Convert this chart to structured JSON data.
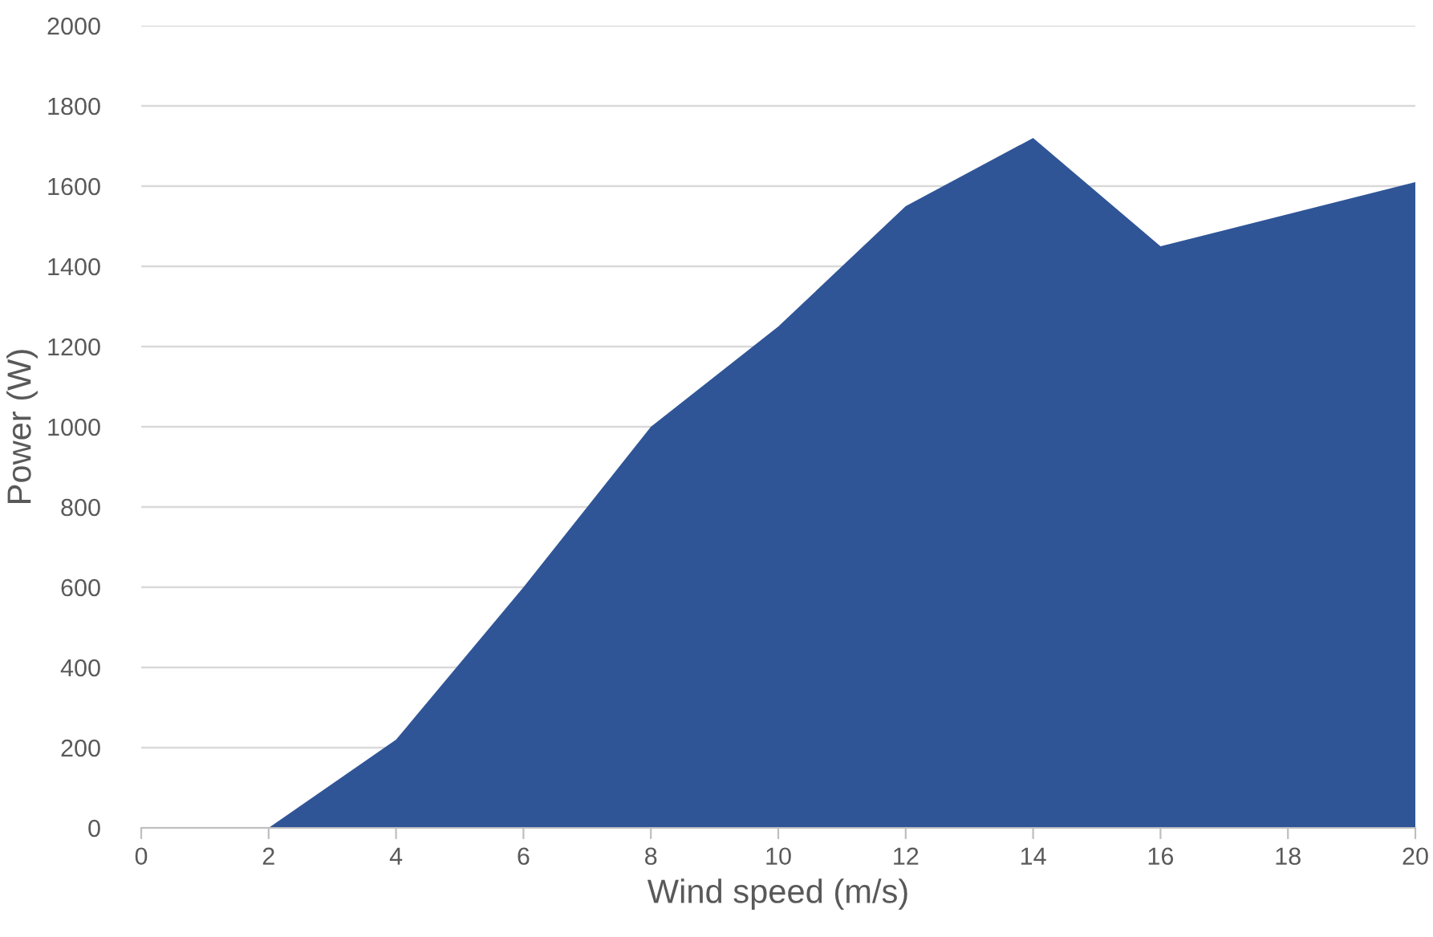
{
  "chart_data": {
    "type": "area",
    "xlabel": "Wind speed (m/s)",
    "ylabel": "Power (W)",
    "x": [
      2,
      4,
      6,
      8,
      10,
      12,
      14,
      16,
      18,
      20
    ],
    "series": [
      {
        "color": "#2f5597",
        "values": [
          0,
          220,
          600,
          1000,
          1250,
          1550,
          1720,
          1450,
          1530,
          1610
        ]
      }
    ],
    "xlim": [
      0,
      20
    ],
    "xticks": [
      0,
      2,
      4,
      6,
      8,
      10,
      12,
      14,
      16,
      18,
      20
    ],
    "ylim": [
      0,
      2000
    ],
    "yticks": [
      0,
      200,
      400,
      600,
      800,
      1000,
      1200,
      1400,
      1600,
      1800,
      2000
    ],
    "grid": "y",
    "legend": false
  }
}
